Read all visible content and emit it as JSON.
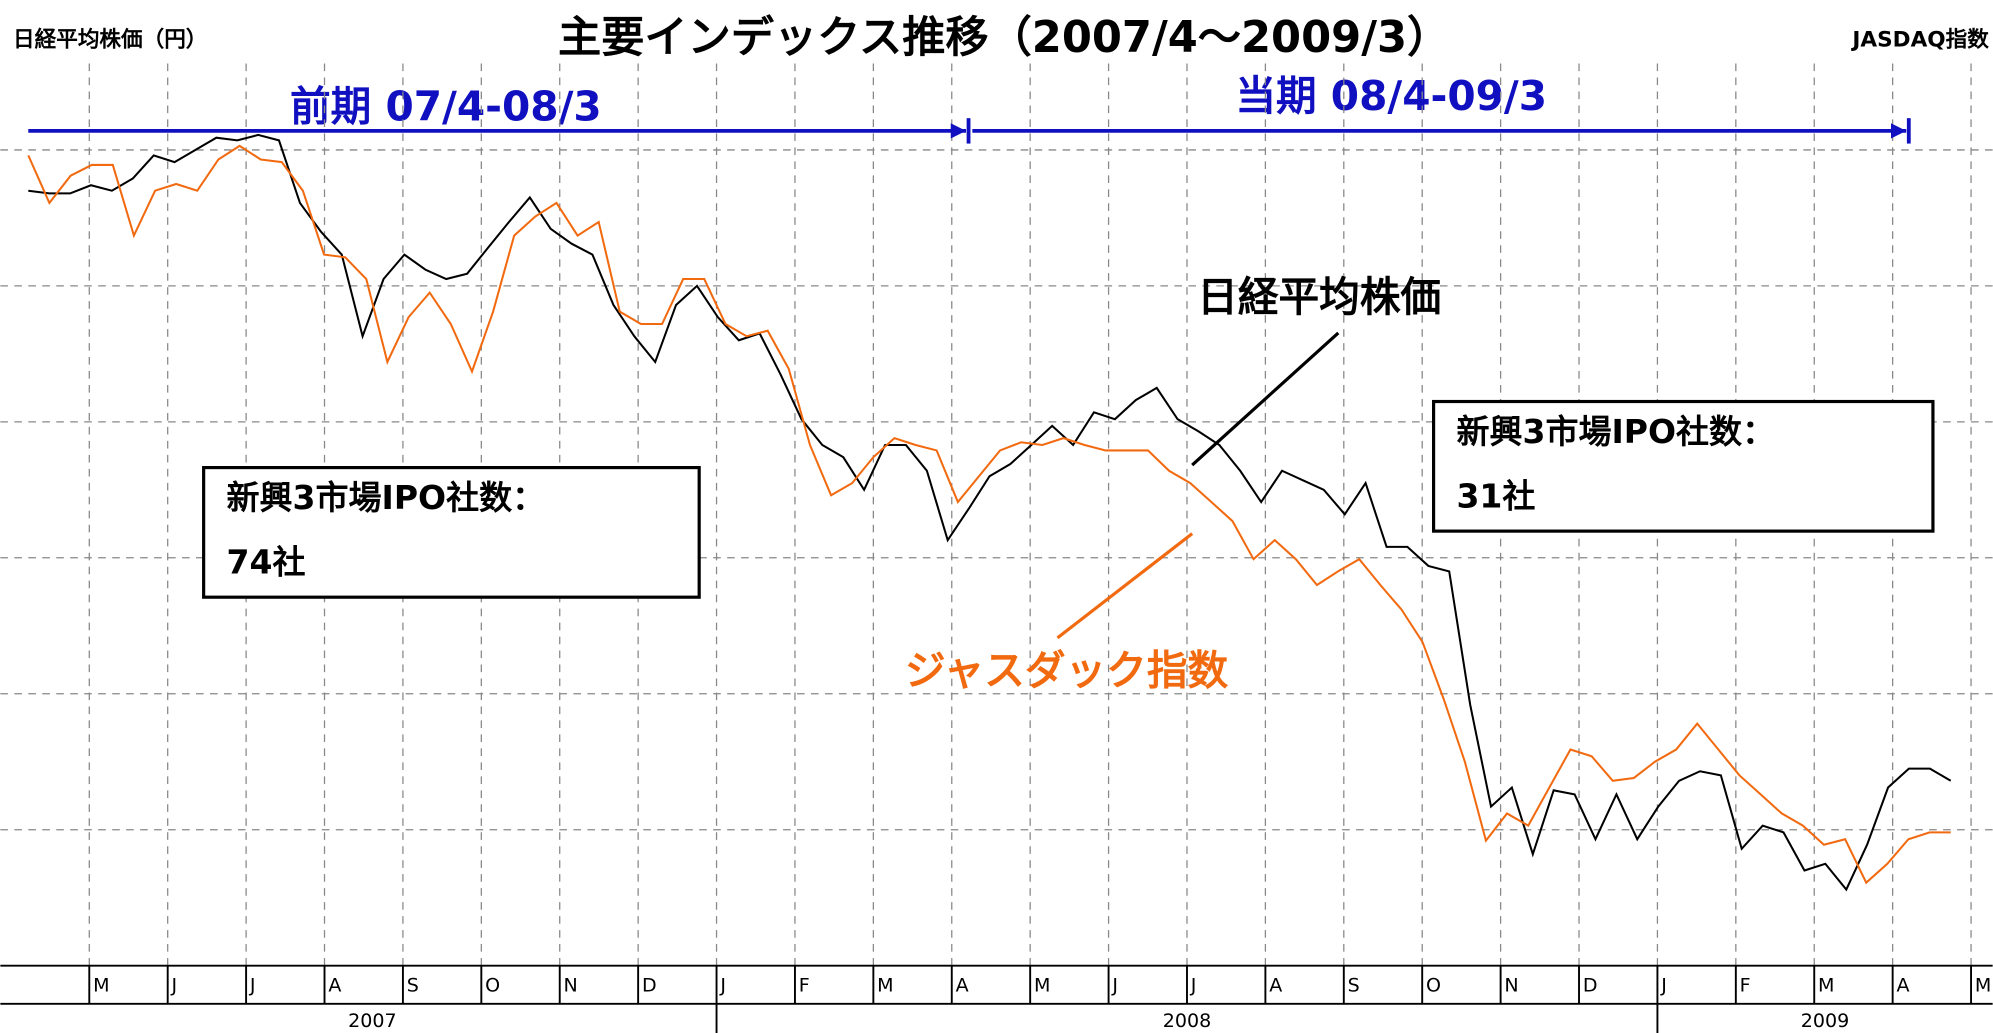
{
  "chart_data": {
    "type": "line",
    "title": "主要インデックス推移（2007/4〜2009/3）",
    "y_label": "日経平均株価（円）",
    "y2_label": "JASDAQ指数",
    "periods": [
      {
        "label": "前期 07/4-08/3"
      },
      {
        "label": "当期 08/4-09/3"
      }
    ],
    "boxes": [
      {
        "line1": "新興3市場IPO社数：",
        "line2": "74社"
      },
      {
        "line1": "新興3市場IPO社数：",
        "line2": "31社"
      }
    ],
    "months": [
      "M",
      "J",
      "J",
      "A",
      "S",
      "O",
      "N",
      "D",
      "J",
      "F",
      "M",
      "A",
      "M",
      "J",
      "J",
      "A",
      "S",
      "O",
      "N",
      "D",
      "J",
      "F",
      "M",
      "A",
      "M"
    ],
    "years": [
      "2007",
      "2008",
      "2009"
    ],
    "ylim": [
      0,
      6.5
    ],
    "yticks": [
      1,
      2,
      3,
      4,
      5,
      6
    ],
    "grid": true,
    "series": [
      {
        "name": "日経平均株価",
        "color": "#000000",
        "values": [
          5.7,
          5.68,
          5.68,
          5.74,
          5.7,
          5.79,
          5.96,
          5.91,
          6.0,
          6.09,
          6.07,
          6.11,
          6.07,
          5.61,
          5.4,
          5.23,
          4.63,
          5.05,
          5.23,
          5.12,
          5.05,
          5.09,
          5.28,
          5.47,
          5.65,
          5.42,
          5.31,
          5.23,
          4.86,
          4.63,
          4.44,
          4.86,
          5.0,
          4.77,
          4.6,
          4.65,
          4.35,
          4.02,
          3.83,
          3.74,
          3.5,
          3.83,
          3.83,
          3.64,
          3.13,
          3.36,
          3.6,
          3.69,
          3.83,
          3.97,
          3.83,
          4.07,
          4.02,
          4.16,
          4.25,
          4.02,
          3.93,
          3.83,
          3.64,
          3.41,
          3.64,
          3.57,
          3.5,
          3.32,
          3.55,
          3.08,
          3.08,
          2.94,
          2.9,
          1.92,
          1.17,
          1.31,
          0.82,
          1.29,
          1.26,
          0.93,
          1.26,
          0.93,
          1.17,
          1.36,
          1.43,
          1.4,
          0.86,
          1.03,
          0.98,
          0.7,
          0.75,
          0.56,
          0.89,
          1.31,
          1.45,
          1.45,
          1.36
        ]
      },
      {
        "name": "ジャスダック指数",
        "color": "#f26a10",
        "values": [
          5.96,
          5.61,
          5.81,
          5.89,
          5.89,
          5.37,
          5.7,
          5.75,
          5.7,
          5.93,
          6.03,
          5.93,
          5.91,
          5.7,
          5.23,
          5.21,
          5.05,
          4.44,
          4.77,
          4.95,
          4.72,
          4.37,
          4.81,
          5.37,
          5.51,
          5.61,
          5.37,
          5.47,
          4.81,
          4.72,
          4.72,
          5.05,
          5.05,
          4.72,
          4.63,
          4.67,
          4.39,
          3.83,
          3.46,
          3.55,
          3.74,
          3.88,
          3.83,
          3.79,
          3.41,
          3.6,
          3.79,
          3.85,
          3.83,
          3.88,
          3.83,
          3.79,
          3.79,
          3.79,
          3.64,
          3.55,
          3.41,
          3.27,
          2.99,
          3.13,
          2.99,
          2.8,
          2.9,
          2.99,
          2.8,
          2.62,
          2.38,
          1.96,
          1.5,
          0.92,
          1.12,
          1.03,
          1.31,
          1.59,
          1.54,
          1.36,
          1.38,
          1.5,
          1.59,
          1.78,
          1.59,
          1.4,
          1.26,
          1.12,
          1.03,
          0.89,
          0.93,
          0.61,
          0.75,
          0.93,
          0.98,
          0.98
        ]
      }
    ]
  }
}
